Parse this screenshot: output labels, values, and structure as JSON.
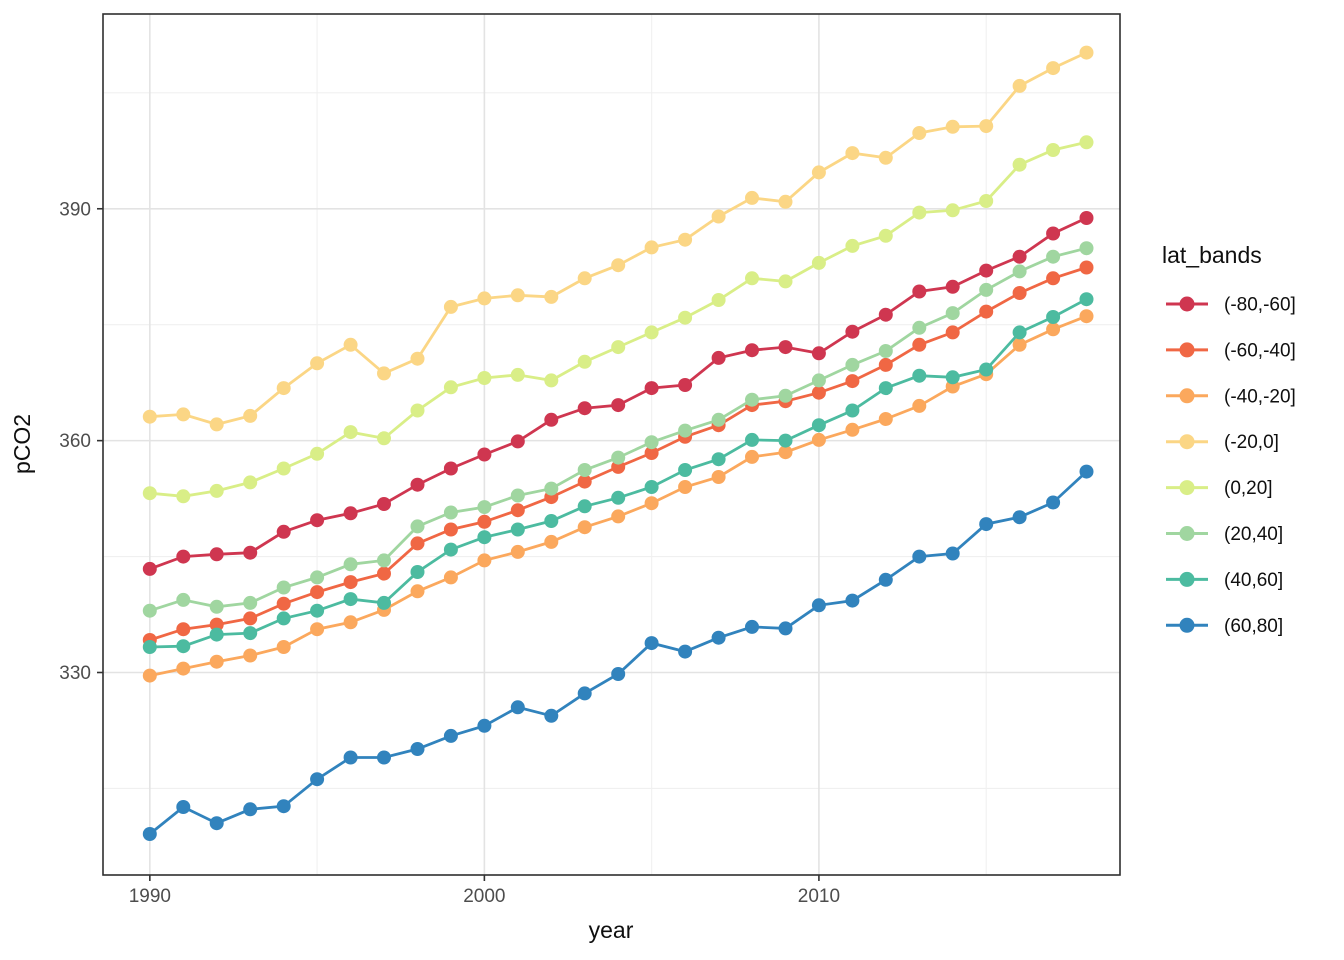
{
  "chart_data": {
    "type": "line",
    "title": "",
    "xlabel": "year",
    "ylabel": "pCO2",
    "legend_title": "lat_bands",
    "legend_position": "right",
    "grid": "major and minor gridlines, white panel, dark panel border (ggplot theme_bw style)",
    "xlim": [
      1988.6,
      2019.0
    ],
    "ylim": [
      303.8,
      415.2
    ],
    "x_ticks": [
      1990,
      2000,
      2010
    ],
    "x_minor_ticks": [
      1995,
      2005,
      2015
    ],
    "y_ticks": [
      330,
      360,
      390
    ],
    "y_minor_ticks": [
      315,
      345,
      375,
      405
    ],
    "x": [
      1990,
      1991,
      1992,
      1993,
      1994,
      1995,
      1996,
      1997,
      1998,
      1999,
      2000,
      2001,
      2002,
      2003,
      2004,
      2005,
      2006,
      2007,
      2008,
      2009,
      2010,
      2011,
      2012,
      2013,
      2014,
      2015,
      2016,
      2017,
      2018
    ],
    "series": [
      {
        "name": "(-80,-60]",
        "color": "#cf3650",
        "values": [
          343.4,
          345.0,
          345.3,
          345.5,
          348.2,
          349.7,
          350.6,
          351.8,
          354.3,
          356.4,
          358.2,
          359.9,
          362.7,
          364.2,
          364.6,
          366.8,
          367.2,
          370.7,
          371.7,
          372.1,
          371.3,
          374.1,
          376.3,
          379.3,
          379.9,
          382.0,
          383.8,
          386.8,
          388.8
        ]
      },
      {
        "name": "(-60,-40]",
        "color": "#f06744",
        "values": [
          334.2,
          335.6,
          336.2,
          337.0,
          338.9,
          340.4,
          341.7,
          342.8,
          346.7,
          348.5,
          349.5,
          351.0,
          352.7,
          354.7,
          356.6,
          358.4,
          360.5,
          362.0,
          364.6,
          365.1,
          366.2,
          367.7,
          369.8,
          372.4,
          374.0,
          376.7,
          379.1,
          381.0,
          382.4
        ]
      },
      {
        "name": "(-40,-20]",
        "color": "#fba85d",
        "values": [
          329.6,
          330.5,
          331.4,
          332.2,
          333.3,
          335.6,
          336.5,
          338.1,
          340.5,
          342.3,
          344.5,
          345.6,
          346.9,
          348.8,
          350.2,
          351.9,
          354.0,
          355.3,
          357.9,
          358.5,
          360.1,
          361.4,
          362.8,
          364.5,
          367.0,
          368.6,
          372.4,
          374.4,
          376.1
        ]
      },
      {
        "name": "(-20,0]",
        "color": "#fbd685",
        "values": [
          363.1,
          363.4,
          362.1,
          363.2,
          366.8,
          370.0,
          372.4,
          368.7,
          370.6,
          377.3,
          378.4,
          378.8,
          378.6,
          381.0,
          382.7,
          385.0,
          386.0,
          389.0,
          391.4,
          390.9,
          394.7,
          397.2,
          396.6,
          399.8,
          400.6,
          400.7,
          405.9,
          408.2,
          410.2
        ]
      },
      {
        "name": "(0,20]",
        "color": "#d9ee87",
        "values": [
          353.2,
          352.8,
          353.5,
          354.6,
          356.4,
          358.3,
          361.1,
          360.3,
          363.9,
          366.9,
          368.1,
          368.5,
          367.8,
          370.2,
          372.1,
          374.0,
          375.9,
          378.2,
          381.0,
          380.6,
          383.0,
          385.2,
          386.5,
          389.5,
          389.8,
          391.0,
          395.7,
          397.6,
          398.6
        ]
      },
      {
        "name": "(20,40]",
        "color": "#a0d6a0",
        "values": [
          338.0,
          339.4,
          338.5,
          339.0,
          341.0,
          342.3,
          344.0,
          344.5,
          348.9,
          350.7,
          351.4,
          352.9,
          353.8,
          356.2,
          357.8,
          359.8,
          361.3,
          362.7,
          365.3,
          365.8,
          367.8,
          369.8,
          371.6,
          374.6,
          376.5,
          379.5,
          381.9,
          383.8,
          384.9
        ]
      },
      {
        "name": "(40,60]",
        "color": "#4cbba0",
        "values": [
          333.3,
          333.4,
          334.9,
          335.1,
          337.0,
          338.0,
          339.5,
          339.0,
          343.0,
          345.9,
          347.5,
          348.5,
          349.6,
          351.5,
          352.6,
          354.0,
          356.2,
          357.6,
          360.1,
          360.0,
          362.0,
          363.9,
          366.8,
          368.4,
          368.2,
          369.2,
          374.0,
          376.0,
          378.3
        ]
      },
      {
        "name": "(60,80]",
        "color": "#3183bd",
        "values": [
          309.1,
          312.6,
          310.5,
          312.3,
          312.7,
          316.2,
          319.0,
          319.0,
          320.1,
          321.8,
          323.1,
          325.5,
          324.4,
          327.3,
          329.8,
          333.8,
          332.7,
          334.5,
          335.9,
          335.7,
          338.7,
          339.3,
          342.0,
          345.0,
          345.4,
          349.2,
          350.1,
          352.0,
          356.0
        ]
      }
    ],
    "x_tick_labels": [
      "1990",
      "2000",
      "2010"
    ],
    "y_tick_labels": [
      "330",
      "360",
      "390"
    ]
  },
  "colors": {
    "panel_background": "#ffffff",
    "panel_border": "#2f2f2f",
    "grid_major": "#e3e3e3",
    "grid_minor": "#f0f0f0",
    "tick_mark": "#333333",
    "tick_label": "#4d4d4d"
  }
}
